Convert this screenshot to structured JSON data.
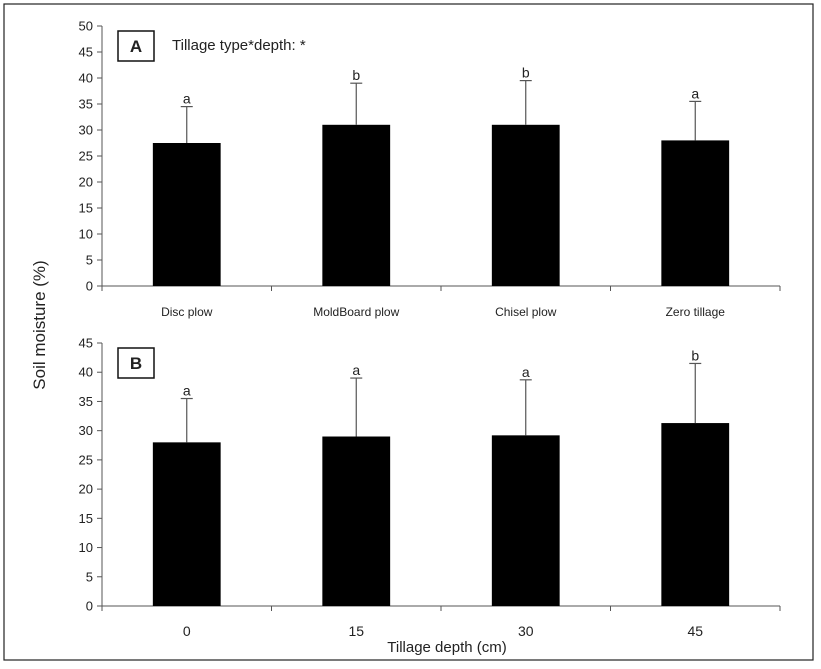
{
  "ylabel": "Soil moisture (%)",
  "chart_data": [
    {
      "type": "bar",
      "panel_label": "A",
      "annotation": "Tillage type*depth: *",
      "categories": [
        "Disc plow",
        "MoldBoard plow",
        "Chisel plow",
        "Zero tillage"
      ],
      "values": [
        27.5,
        31,
        31,
        28
      ],
      "errors": [
        7,
        8,
        8.5,
        7.5
      ],
      "significance": [
        "a",
        "b",
        "b",
        "a"
      ],
      "ylim": [
        0,
        50
      ],
      "yticks": [
        "0",
        "5",
        "10",
        "15",
        "20",
        "25",
        "30",
        "35",
        "40",
        "45",
        "50"
      ],
      "xlabel": "",
      "bar_color": "#000000"
    },
    {
      "type": "bar",
      "panel_label": "B",
      "annotation": "",
      "categories": [
        "0",
        "15",
        "30",
        "45"
      ],
      "values": [
        28,
        29,
        29.2,
        31.3
      ],
      "errors": [
        7.5,
        10,
        9.5,
        10.2
      ],
      "significance": [
        "a",
        "a",
        "a",
        "b"
      ],
      "ylim": [
        0,
        45
      ],
      "yticks": [
        "0",
        "5",
        "10",
        "15",
        "20",
        "25",
        "30",
        "35",
        "40",
        "45"
      ],
      "xlabel": "Tillage depth (cm)",
      "bar_color": "#000000"
    }
  ]
}
